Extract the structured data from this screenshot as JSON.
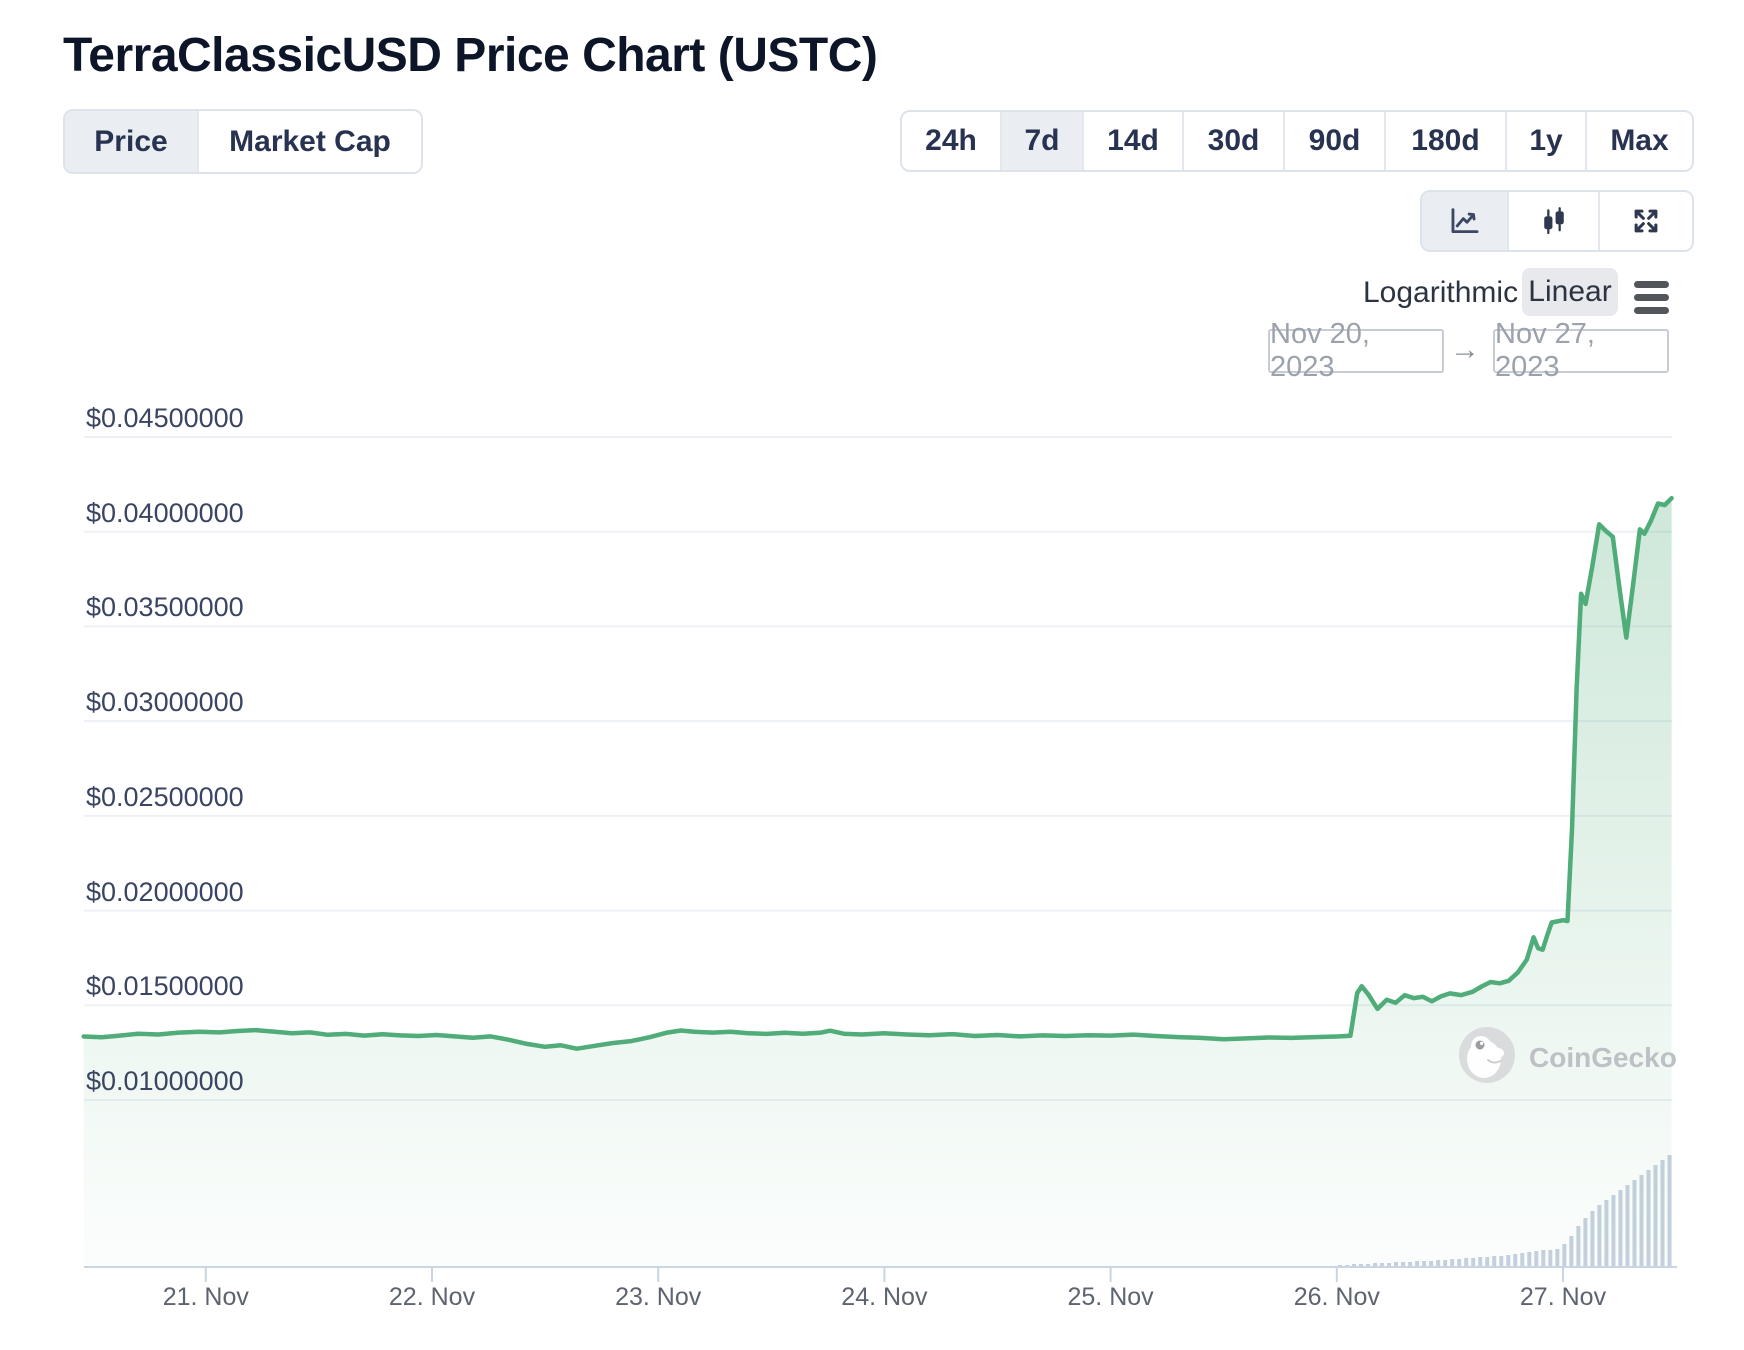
{
  "header": {
    "title": "TerraClassicUSD Price Chart (USTC)"
  },
  "controls": {
    "metric_tabs": [
      {
        "label": "Price",
        "active": true
      },
      {
        "label": "Market Cap",
        "active": false
      }
    ],
    "range_tabs": [
      {
        "label": "24h",
        "active": false
      },
      {
        "label": "7d",
        "active": true
      },
      {
        "label": "14d",
        "active": false
      },
      {
        "label": "30d",
        "active": false
      },
      {
        "label": "90d",
        "active": false
      },
      {
        "label": "180d",
        "active": false
      },
      {
        "label": "1y",
        "active": false
      },
      {
        "label": "Max",
        "active": false
      }
    ],
    "chart_type_buttons": [
      {
        "icon": "line-chart-icon",
        "active": true
      },
      {
        "icon": "candlestick-icon",
        "active": false
      },
      {
        "icon": "fullscreen-icon",
        "active": false
      }
    ],
    "scale_toggle": {
      "logarithmic": "Logarithmic",
      "linear": "Linear",
      "selected": "Linear"
    },
    "date_range": {
      "from": "Nov 20, 2023",
      "arrow": "→",
      "to": "Nov 27, 2023"
    }
  },
  "watermark": {
    "label": "CoinGecko"
  },
  "colors": {
    "line_green": "#50ac78",
    "area_green_top": "rgba(80,172,120,0.30)",
    "area_green_bottom": "rgba(80,172,120,0.02)",
    "grid": "#edf1f6",
    "axis": "#c9d5e3",
    "volume_bar": "#c6d1df",
    "title_text": "#0d1528",
    "button_text": "#273350",
    "active_tab_bg": "#eaedf1",
    "y_label_text": "#3a4563",
    "x_label_text": "#5d6470",
    "date_text": "#9ba2ac"
  },
  "chart_data": {
    "type": "line",
    "title": "TerraClassicUSD (USTC) price, 7 days",
    "currency": "USD",
    "legend": false,
    "grid": "horizontal",
    "x_axis": {
      "unit": "date (November 2023)",
      "tick_days": [
        21,
        22,
        23,
        24,
        25,
        26,
        27
      ],
      "tick_labels": [
        "21. Nov",
        "22. Nov",
        "23. Nov",
        "24. Nov",
        "25. Nov",
        "26. Nov",
        "27. Nov"
      ],
      "range_days": [
        20.46,
        27.48
      ]
    },
    "y_axis": {
      "tick_values": [
        0.045,
        0.04,
        0.035,
        0.03,
        0.025,
        0.02,
        0.015,
        0.01
      ],
      "tick_labels": [
        "$0.04500000",
        "$0.04000000",
        "$0.03500000",
        "$0.03000000",
        "$0.02500000",
        "$0.02000000",
        "$0.01500000",
        "$0.01000000"
      ],
      "range": [
        0.0092,
        0.0467
      ]
    },
    "series": [
      {
        "name": "USTC price (USD)",
        "color": "#50ac78",
        "points": [
          [
            20.46,
            0.01335
          ],
          [
            20.54,
            0.01331
          ],
          [
            20.62,
            0.0134
          ],
          [
            20.7,
            0.0135
          ],
          [
            20.79,
            0.01346
          ],
          [
            20.88,
            0.01356
          ],
          [
            20.97,
            0.0136
          ],
          [
            21.06,
            0.01357
          ],
          [
            21.14,
            0.01364
          ],
          [
            21.22,
            0.01369
          ],
          [
            21.3,
            0.01361
          ],
          [
            21.38,
            0.01352
          ],
          [
            21.46,
            0.01357
          ],
          [
            21.54,
            0.01344
          ],
          [
            21.62,
            0.01349
          ],
          [
            21.7,
            0.0134
          ],
          [
            21.78,
            0.01347
          ],
          [
            21.86,
            0.01341
          ],
          [
            21.94,
            0.01338
          ],
          [
            22.02,
            0.01343
          ],
          [
            22.1,
            0.01336
          ],
          [
            22.18,
            0.01329
          ],
          [
            22.26,
            0.01336
          ],
          [
            22.34,
            0.01318
          ],
          [
            22.42,
            0.01296
          ],
          [
            22.5,
            0.01281
          ],
          [
            22.57,
            0.01289
          ],
          [
            22.64,
            0.01271
          ],
          [
            22.72,
            0.01286
          ],
          [
            22.8,
            0.01301
          ],
          [
            22.88,
            0.01311
          ],
          [
            22.96,
            0.01331
          ],
          [
            23.04,
            0.01356
          ],
          [
            23.1,
            0.01367
          ],
          [
            23.16,
            0.0136
          ],
          [
            23.24,
            0.01356
          ],
          [
            23.32,
            0.0136
          ],
          [
            23.4,
            0.01352
          ],
          [
            23.48,
            0.01349
          ],
          [
            23.56,
            0.01355
          ],
          [
            23.64,
            0.0135
          ],
          [
            23.72,
            0.01356
          ],
          [
            23.76,
            0.01366
          ],
          [
            23.82,
            0.0135
          ],
          [
            23.9,
            0.01346
          ],
          [
            24.0,
            0.01352
          ],
          [
            24.1,
            0.01346
          ],
          [
            24.2,
            0.01342
          ],
          [
            24.3,
            0.01348
          ],
          [
            24.4,
            0.01338
          ],
          [
            24.5,
            0.01343
          ],
          [
            24.6,
            0.01336
          ],
          [
            24.7,
            0.01341
          ],
          [
            24.8,
            0.01338
          ],
          [
            24.9,
            0.01342
          ],
          [
            25.0,
            0.0134
          ],
          [
            25.1,
            0.01345
          ],
          [
            25.2,
            0.01338
          ],
          [
            25.3,
            0.01332
          ],
          [
            25.4,
            0.01328
          ],
          [
            25.5,
            0.01321
          ],
          [
            25.6,
            0.01325
          ],
          [
            25.7,
            0.0133
          ],
          [
            25.8,
            0.01328
          ],
          [
            25.9,
            0.01332
          ],
          [
            26.0,
            0.01335
          ],
          [
            26.06,
            0.01339
          ],
          [
            26.09,
            0.01565
          ],
          [
            26.11,
            0.01601
          ],
          [
            26.14,
            0.01556
          ],
          [
            26.18,
            0.01481
          ],
          [
            26.22,
            0.01529
          ],
          [
            26.26,
            0.01513
          ],
          [
            26.3,
            0.01553
          ],
          [
            26.34,
            0.01538
          ],
          [
            26.38,
            0.01545
          ],
          [
            26.42,
            0.01521
          ],
          [
            26.46,
            0.01547
          ],
          [
            26.5,
            0.01563
          ],
          [
            26.55,
            0.01554
          ],
          [
            26.6,
            0.01571
          ],
          [
            26.64,
            0.01599
          ],
          [
            26.68,
            0.01623
          ],
          [
            26.72,
            0.01616
          ],
          [
            26.76,
            0.01629
          ],
          [
            26.8,
            0.01673
          ],
          [
            26.84,
            0.01741
          ],
          [
            26.87,
            0.01859
          ],
          [
            26.89,
            0.01801
          ],
          [
            26.91,
            0.01793
          ],
          [
            26.93,
            0.01869
          ],
          [
            26.95,
            0.01937
          ],
          [
            27.0,
            0.01949
          ],
          [
            27.02,
            0.01945
          ],
          [
            27.04,
            0.0243
          ],
          [
            27.06,
            0.0317
          ],
          [
            27.08,
            0.03673
          ],
          [
            27.1,
            0.03619
          ],
          [
            27.13,
            0.03821
          ],
          [
            27.16,
            0.04039
          ],
          [
            27.19,
            0.04003
          ],
          [
            27.22,
            0.03973
          ],
          [
            27.25,
            0.03701
          ],
          [
            27.28,
            0.03441
          ],
          [
            27.31,
            0.03721
          ],
          [
            27.34,
            0.04013
          ],
          [
            27.36,
            0.03989
          ],
          [
            27.39,
            0.04061
          ],
          [
            27.42,
            0.04149
          ],
          [
            27.45,
            0.04141
          ],
          [
            27.48,
            0.04177
          ]
        ]
      }
    ],
    "volume_bars": {
      "note": "relative trading-volume bars along bottom axis, heights relative (max = 111)",
      "color": "#c6d1df",
      "start_day": 26.014,
      "day_step": 0.031,
      "heights_rel": [
        1,
        1,
        2,
        2,
        2,
        3,
        3,
        3,
        4,
        4,
        4,
        5,
        5,
        5,
        6,
        6,
        7,
        7,
        8,
        8,
        9,
        9,
        10,
        10,
        11,
        12,
        13,
        14,
        15,
        16,
        16,
        17,
        22,
        30,
        40,
        48,
        55,
        61,
        66,
        71,
        76,
        81,
        86,
        91,
        96,
        101,
        106,
        111
      ]
    }
  }
}
